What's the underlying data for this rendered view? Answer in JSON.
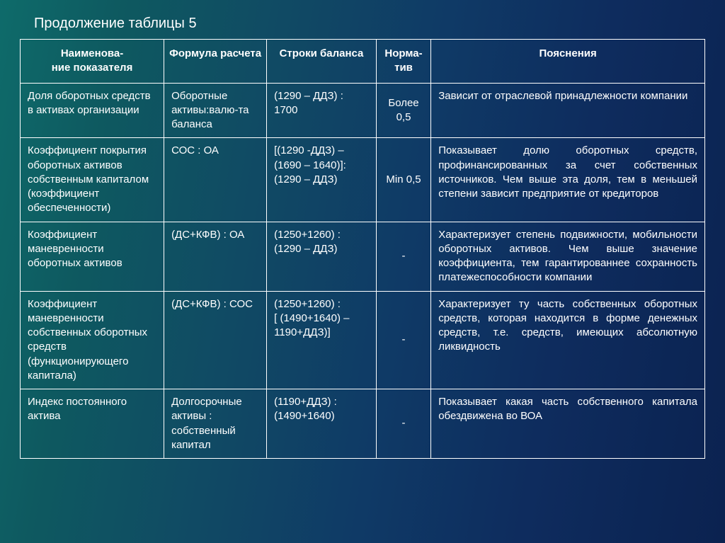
{
  "title": "Продолжение таблицы 5",
  "headers": {
    "c0a": "Наименова-",
    "c0b": "ние показателя",
    "c1": "Формула расчета",
    "c2": "Строки баланса",
    "c3a": "Норма-",
    "c3b": "тив",
    "c4": "Пояснения"
  },
  "rows": [
    {
      "name": "Доля оборотных средств в активах организации",
      "formula": "Оборотные активы:валю-та баланса",
      "balance": "(1290 – ДДЗ) : 1700",
      "norm": "Более 0,5",
      "expl": "Зависит от отраслевой принадлежности компании"
    },
    {
      "name": "Коэффициент покрытия оборотных активов собственным капиталом (коэффициент обеспеченности)",
      "formula": "СОС : ОА",
      "balance": "[(1290 -ДДЗ) – (1690 – 1640)]:\n(1290 – ДДЗ)",
      "norm": "Min 0,5",
      "expl": "Показывает долю оборотных средств, профинансированных за счет собственных источников. Чем выше эта доля, тем в меньшей степени зависит предприятие от кредиторов"
    },
    {
      "name": "Коэффициент маневренности оборотных активов",
      "formula": "(ДС+КФВ) : ОА",
      "balance": "(1250+1260) : (1290 – ДДЗ)",
      "norm": "-",
      "expl": "Характеризует степень подвижности, мобильности оборотных активов. Чем выше значение коэффициента, тем гарантированнее сохранность платежеспособности компании"
    },
    {
      "name": "Коэффициент маневренности собственных оборотных средств (функционирующего капитала)",
      "formula": "(ДС+КФВ) : СОС",
      "balance": "(1250+1260) :\n[ (1490+1640) – 1190+ДДЗ)]",
      "norm": "-",
      "expl": "Характеризует ту часть собственных оборотных средств, которая находится в форме денежных средств, т.е. средств, имеющих абсолютную ликвидность"
    },
    {
      "name": "Индекс постоянного актива",
      "formula": "Долгосрочные активы :\nсобственный капитал",
      "balance": "(1190+ДДЗ) : (1490+1640)",
      "norm": "-",
      "expl": "Показывает какая часть собственного капитала обездвижена во ВОА"
    }
  ],
  "style": {
    "border_color": "#ffffff",
    "text_color": "#ffffff",
    "title_fontsize": 20,
    "cell_fontsize": 15
  }
}
